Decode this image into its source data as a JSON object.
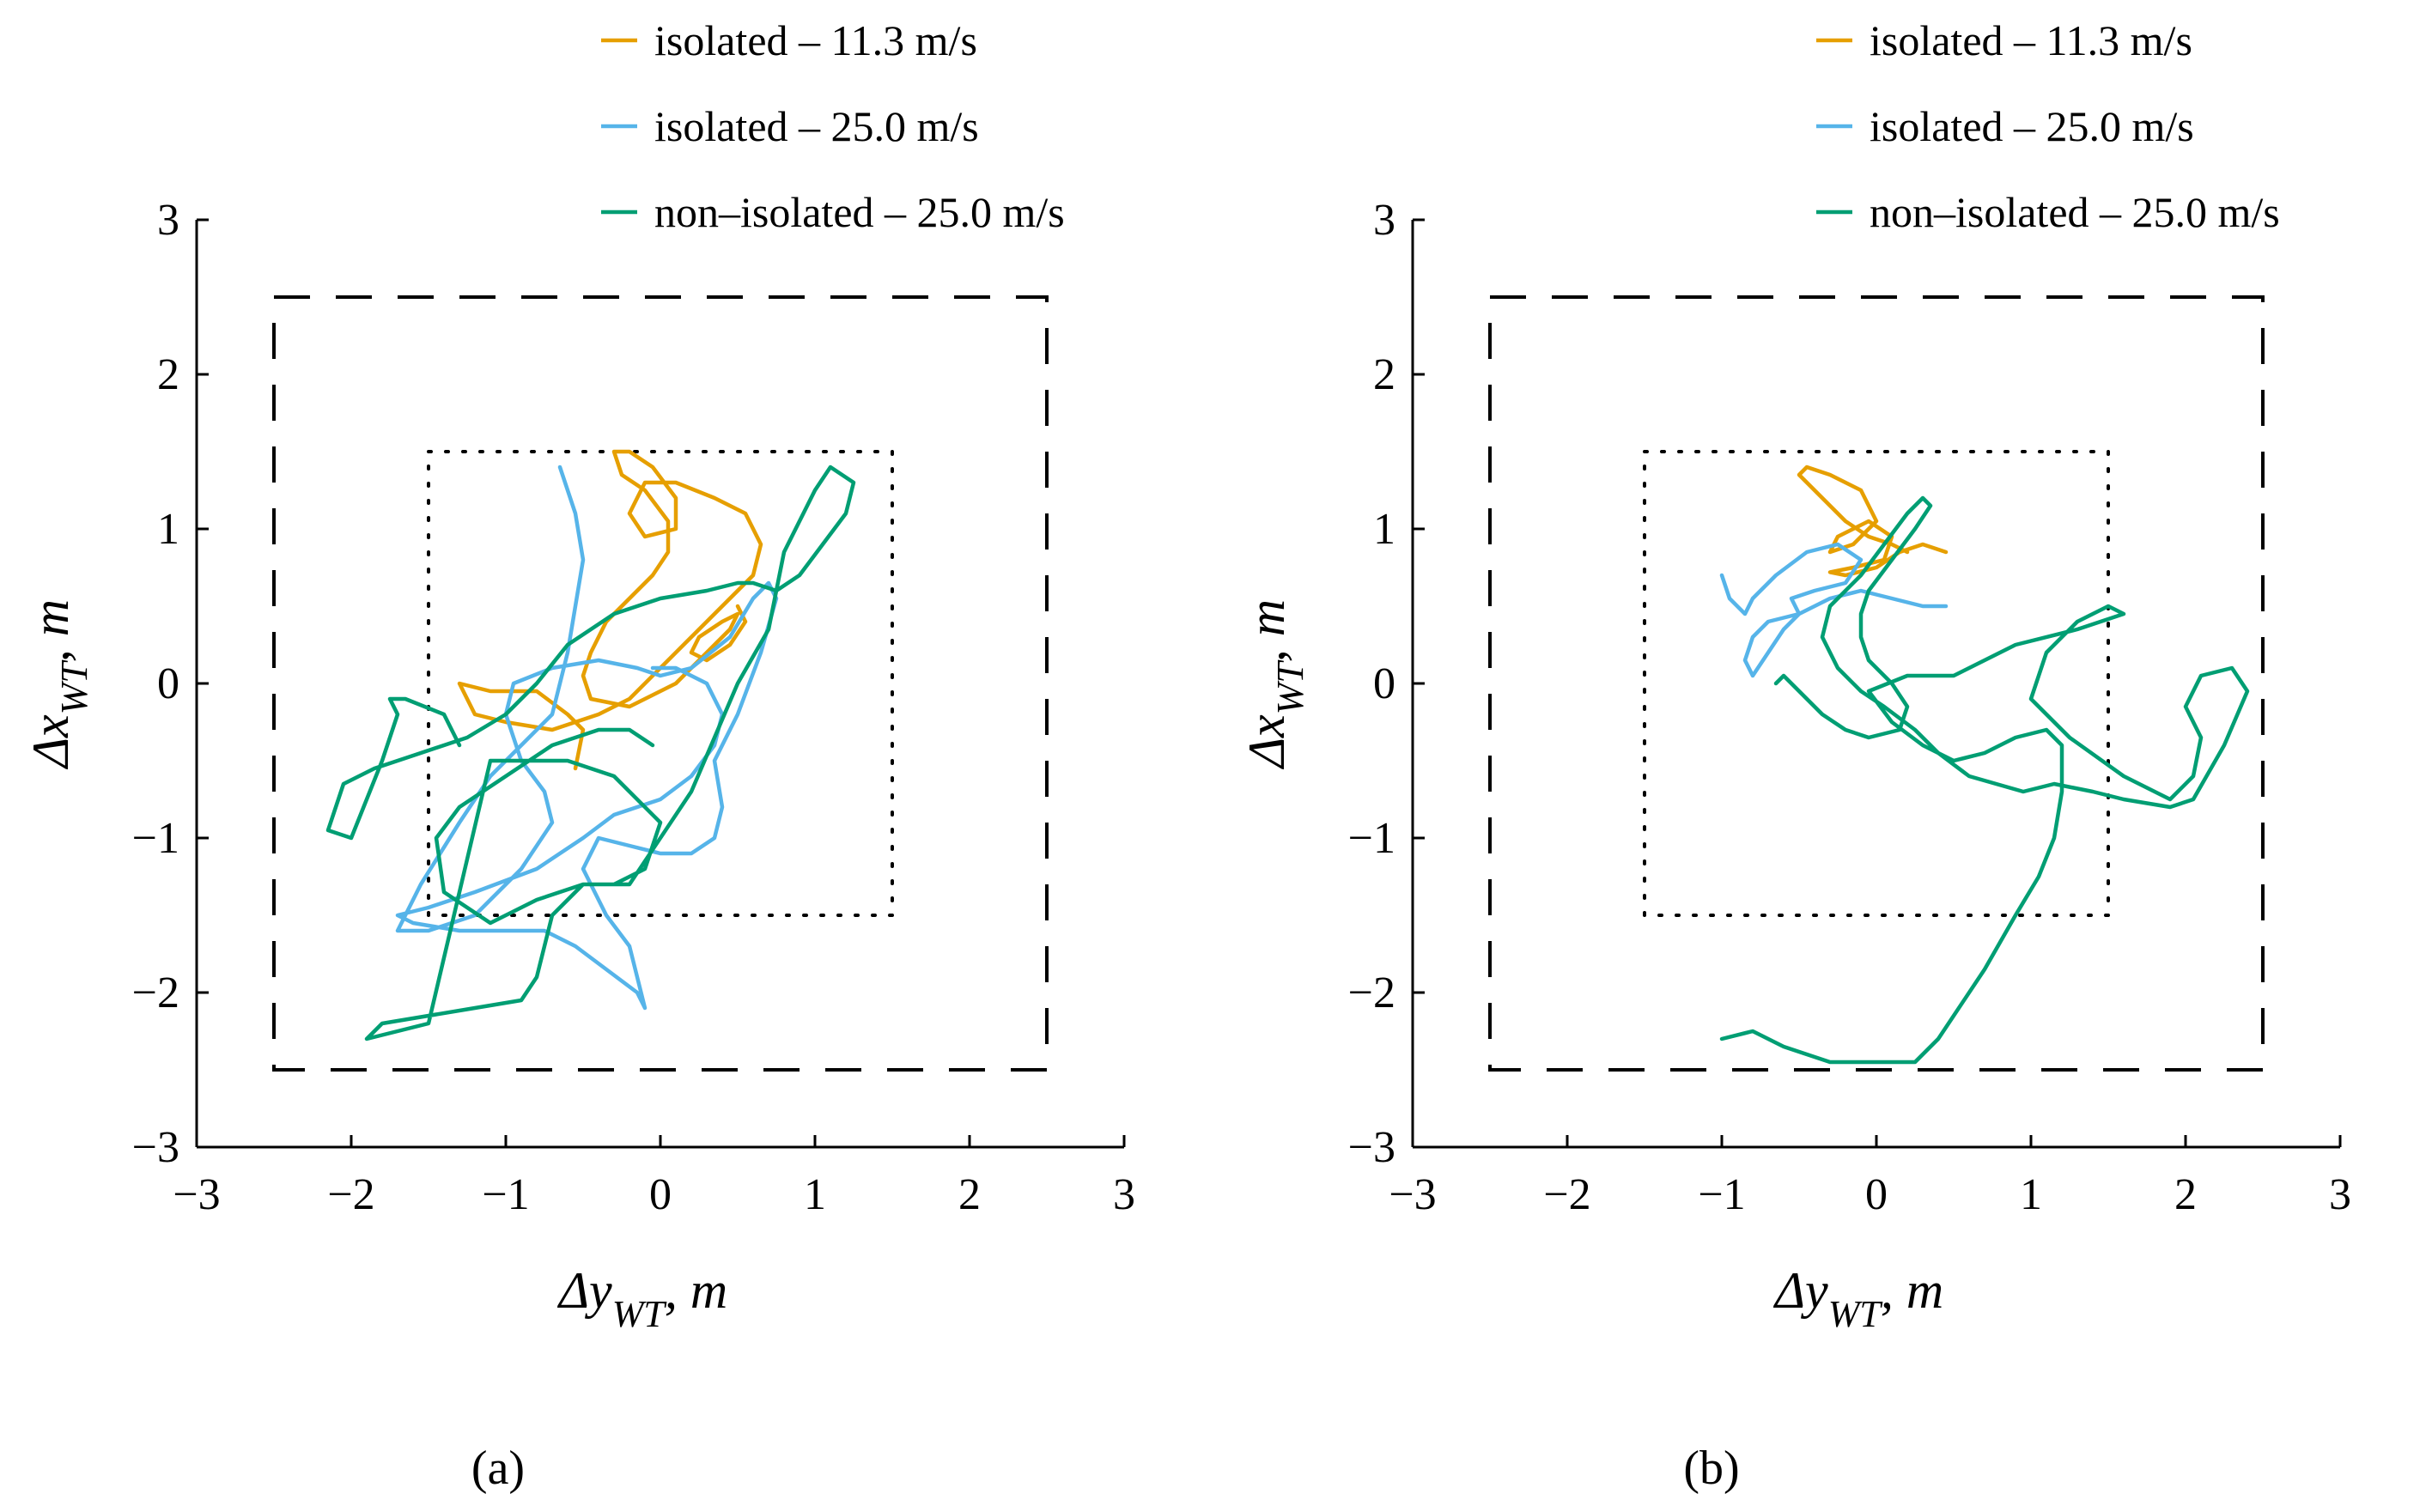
{
  "figure": {
    "panel_labels": [
      "(a)",
      "(b)"
    ]
  },
  "colors": {
    "isolated_11_3": "#E69F00",
    "isolated_25_0": "#56B4E9",
    "non_isolated_25_0": "#009E73",
    "axis": "#000000"
  },
  "chart_data": [
    {
      "type": "line",
      "panel": "(a)",
      "xlabel": "Δy",
      "xlabel_sub": "WT",
      "xlabel_unit": ", m",
      "ylabel": "Δx",
      "ylabel_sub": "WT",
      "ylabel_unit": ", m",
      "xlim": [
        -3,
        3
      ],
      "ylim": [
        -3,
        3
      ],
      "xticks": [
        -3,
        -2,
        -1,
        0,
        1,
        2,
        3
      ],
      "yticks": [
        -3,
        -2,
        -1,
        0,
        1,
        2,
        3
      ],
      "xtick_labels": [
        "−3",
        "−2",
        "−1",
        "0",
        "1",
        "2",
        "3"
      ],
      "ytick_labels": [
        "−3",
        "−2",
        "−1",
        "0",
        "1",
        "2",
        "3"
      ],
      "grid": false,
      "legend_position": "top-right",
      "boundaries": [
        {
          "name": "outer-limit",
          "style": "dashed",
          "half_width": 2.5
        },
        {
          "name": "inner-limit",
          "style": "dotted",
          "half_width": 1.5
        }
      ],
      "series": [
        {
          "name": "isolated – 11.3 m/s",
          "color_key": "isolated_11_3",
          "x": [
            -0.55,
            -0.5,
            -0.6,
            -0.8,
            -1.1,
            -1.3,
            -1.2,
            -1.0,
            -0.7,
            -0.4,
            -0.2,
            0.0,
            0.2,
            0.4,
            0.6,
            0.65,
            0.55,
            0.35,
            0.1,
            -0.1,
            -0.2,
            -0.1,
            0.1,
            0.1,
            -0.05,
            -0.2,
            -0.3,
            -0.25,
            -0.1,
            0.05,
            0.05,
            -0.05,
            -0.2,
            -0.35,
            -0.45,
            -0.5,
            -0.45,
            -0.2,
            0.1,
            0.3,
            0.45,
            0.5,
            0.4,
            0.25,
            0.2,
            0.3,
            0.45,
            0.55,
            0.5
          ],
          "y": [
            -0.55,
            -0.3,
            -0.2,
            -0.05,
            -0.05,
            0.0,
            -0.2,
            -0.25,
            -0.3,
            -0.2,
            -0.1,
            0.1,
            0.3,
            0.5,
            0.7,
            0.9,
            1.1,
            1.2,
            1.3,
            1.3,
            1.1,
            0.95,
            1.0,
            1.2,
            1.4,
            1.5,
            1.5,
            1.35,
            1.25,
            1.05,
            0.85,
            0.7,
            0.55,
            0.4,
            0.2,
            0.05,
            -0.1,
            -0.15,
            0.0,
            0.2,
            0.35,
            0.45,
            0.4,
            0.3,
            0.2,
            0.15,
            0.25,
            0.4,
            0.5
          ]
        },
        {
          "name": "isolated – 25.0 m/s",
          "color_key": "isolated_25_0",
          "x": [
            -0.65,
            -0.55,
            -0.5,
            -0.55,
            -0.6,
            -0.7,
            -0.9,
            -1.1,
            -1.3,
            -1.55,
            -1.7,
            -1.5,
            -1.2,
            -0.9,
            -0.7,
            -0.75,
            -0.9,
            -1.0,
            -0.95,
            -0.7,
            -0.4,
            -0.15,
            0.0,
            0.2,
            0.45,
            0.6,
            0.7,
            0.75,
            0.65,
            0.5,
            0.35,
            0.4,
            0.35,
            0.2,
            0.0,
            -0.2,
            -0.4,
            -0.5,
            -0.35,
            -0.2,
            -0.15,
            -0.1,
            -0.15,
            -0.35,
            -0.55,
            -0.75,
            -0.95,
            -1.3,
            -1.6,
            -1.7,
            -1.5,
            -1.2,
            -0.8,
            -0.5,
            -0.3,
            0.0,
            0.2,
            0.35,
            0.4,
            0.3,
            0.1,
            -0.05
          ],
          "y": [
            1.4,
            1.1,
            0.8,
            0.5,
            0.2,
            -0.2,
            -0.4,
            -0.6,
            -0.9,
            -1.3,
            -1.6,
            -1.6,
            -1.5,
            -1.2,
            -0.9,
            -0.7,
            -0.5,
            -0.2,
            0.0,
            0.1,
            0.15,
            0.1,
            0.05,
            0.1,
            0.3,
            0.55,
            0.65,
            0.55,
            0.2,
            -0.2,
            -0.5,
            -0.8,
            -1.0,
            -1.1,
            -1.1,
            -1.05,
            -1.0,
            -1.2,
            -1.5,
            -1.7,
            -1.9,
            -2.1,
            -2.0,
            -1.85,
            -1.7,
            -1.6,
            -1.6,
            -1.6,
            -1.55,
            -1.5,
            -1.45,
            -1.35,
            -1.2,
            -1.0,
            -0.85,
            -0.75,
            -0.6,
            -0.4,
            -0.2,
            0.0,
            0.1,
            0.1
          ]
        },
        {
          "name": "non–isolated – 25.0 m/s",
          "color_key": "non_isolated_25_0",
          "x": [
            -0.05,
            -0.2,
            -0.4,
            -0.7,
            -1.0,
            -1.3,
            -1.45,
            -1.4,
            -1.1,
            -0.8,
            -0.5,
            -0.3,
            -0.1,
            0.0,
            -0.3,
            -0.6,
            -0.9,
            -1.1,
            -1.5,
            -1.9,
            -1.8,
            -1.5,
            -1.2,
            -0.9,
            -0.8,
            -0.7,
            -0.5,
            -0.2,
            0.2,
            0.5,
            0.7,
            0.75,
            0.8,
            0.9,
            1.0,
            1.1,
            1.25,
            1.2,
            1.05,
            0.9,
            0.75,
            0.6,
            0.5,
            0.3,
            0.0,
            -0.3,
            -0.6,
            -0.8,
            -1.0,
            -1.25,
            -1.55,
            -1.85,
            -2.05,
            -2.15,
            -2.0,
            -1.8,
            -1.7,
            -1.75,
            -1.65,
            -1.4,
            -1.3
          ],
          "y": [
            -0.4,
            -0.3,
            -0.3,
            -0.4,
            -0.6,
            -0.8,
            -1.0,
            -1.35,
            -1.55,
            -1.4,
            -1.3,
            -1.3,
            -1.2,
            -0.9,
            -0.6,
            -0.5,
            -0.5,
            -0.5,
            -2.2,
            -2.3,
            -2.2,
            -2.15,
            -2.1,
            -2.05,
            -1.9,
            -1.5,
            -1.3,
            -1.3,
            -0.7,
            0.0,
            0.35,
            0.6,
            0.85,
            1.05,
            1.25,
            1.4,
            1.3,
            1.1,
            0.9,
            0.7,
            0.6,
            0.65,
            0.65,
            0.6,
            0.55,
            0.45,
            0.25,
            0.0,
            -0.2,
            -0.35,
            -0.45,
            -0.55,
            -0.65,
            -0.95,
            -1.0,
            -0.5,
            -0.2,
            -0.1,
            -0.1,
            -0.2,
            -0.4
          ]
        }
      ]
    },
    {
      "type": "line",
      "panel": "(b)",
      "xlabel": "Δy",
      "xlabel_sub": "WT",
      "xlabel_unit": ", m",
      "ylabel": "Δx",
      "ylabel_sub": "WT",
      "ylabel_unit": ", m",
      "xlim": [
        -3,
        3
      ],
      "ylim": [
        -3,
        3
      ],
      "xticks": [
        -3,
        -2,
        -1,
        0,
        1,
        2,
        3
      ],
      "yticks": [
        -3,
        -2,
        -1,
        0,
        1,
        2,
        3
      ],
      "xtick_labels": [
        "−3",
        "−2",
        "−1",
        "0",
        "1",
        "2",
        "3"
      ],
      "ytick_labels": [
        "−3",
        "−2",
        "−1",
        "0",
        "1",
        "2",
        "3"
      ],
      "grid": false,
      "legend_position": "top-right",
      "boundaries": [
        {
          "name": "outer-limit",
          "style": "dashed",
          "half_width": 2.5
        },
        {
          "name": "inner-limit",
          "style": "dotted",
          "half_width": 1.5
        }
      ],
      "series": [
        {
          "name": "isolated – 11.3 m/s",
          "color_key": "isolated_11_3",
          "x": [
            0.2,
            0.1,
            -0.05,
            -0.2,
            -0.35,
            -0.5,
            -0.45,
            -0.3,
            -0.1,
            0.0,
            -0.15,
            -0.3,
            -0.25,
            -0.05,
            0.1,
            0.05,
            -0.15,
            -0.3,
            -0.2,
            0.0,
            0.15,
            0.3,
            0.45
          ],
          "y": [
            0.85,
            0.9,
            0.95,
            1.05,
            1.2,
            1.35,
            1.4,
            1.35,
            1.25,
            1.05,
            0.9,
            0.85,
            0.95,
            1.05,
            0.95,
            0.8,
            0.75,
            0.72,
            0.7,
            0.75,
            0.85,
            0.9,
            0.85
          ]
        },
        {
          "name": "isolated – 25.0 m/s",
          "color_key": "isolated_25_0",
          "x": [
            0.45,
            0.3,
            0.1,
            -0.1,
            -0.3,
            -0.5,
            -0.7,
            -0.8,
            -0.85,
            -0.8,
            -0.7,
            -0.6,
            -0.5,
            -0.55,
            -0.4,
            -0.2,
            -0.1,
            -0.25,
            -0.45,
            -0.65,
            -0.8,
            -0.85,
            -0.95,
            -1.0
          ],
          "y": [
            0.5,
            0.5,
            0.55,
            0.6,
            0.55,
            0.45,
            0.4,
            0.3,
            0.15,
            0.05,
            0.2,
            0.35,
            0.45,
            0.55,
            0.6,
            0.65,
            0.8,
            0.9,
            0.85,
            0.7,
            0.55,
            0.45,
            0.55,
            0.7
          ]
        },
        {
          "name": "non–isolated – 25.0 m/s",
          "color_key": "non_isolated_25_0",
          "x": [
            -1.0,
            -0.8,
            -0.6,
            -0.3,
            0.0,
            0.25,
            0.4,
            0.5,
            0.7,
            0.9,
            1.05,
            1.15,
            1.2,
            1.2,
            1.1,
            0.9,
            0.7,
            0.5,
            0.3,
            0.1,
            -0.05,
            0.2,
            0.5,
            0.9,
            1.3,
            1.6,
            1.5,
            1.3,
            1.1,
            1.0,
            1.25,
            1.6,
            1.9,
            2.05,
            2.1,
            2.0,
            2.1,
            2.3,
            2.4,
            2.25,
            2.05,
            1.9,
            1.6,
            1.4,
            1.15,
            0.95,
            0.6,
            0.4,
            0.25,
            0.05,
            -0.1,
            -0.25,
            -0.35,
            -0.3,
            -0.1,
            0.05,
            0.2,
            0.3,
            0.35,
            0.25,
            0.1,
            -0.05,
            -0.1,
            -0.1,
            -0.05,
            0.1,
            0.2,
            0.15,
            -0.05,
            -0.2,
            -0.35,
            -0.5,
            -0.6,
            -0.65
          ],
          "y": [
            -2.3,
            -2.25,
            -2.35,
            -2.45,
            -2.45,
            -2.45,
            -2.3,
            -2.15,
            -1.85,
            -1.5,
            -1.25,
            -1.0,
            -0.7,
            -0.4,
            -0.3,
            -0.35,
            -0.45,
            -0.5,
            -0.4,
            -0.25,
            -0.05,
            0.05,
            0.05,
            0.25,
            0.35,
            0.45,
            0.5,
            0.4,
            0.2,
            -0.1,
            -0.35,
            -0.6,
            -0.75,
            -0.6,
            -0.35,
            -0.15,
            0.05,
            0.1,
            -0.05,
            -0.4,
            -0.75,
            -0.8,
            -0.75,
            -0.7,
            -0.65,
            -0.7,
            -0.6,
            -0.45,
            -0.3,
            -0.15,
            -0.05,
            0.1,
            0.3,
            0.5,
            0.7,
            0.9,
            1.1,
            1.2,
            1.15,
            1.0,
            0.8,
            0.6,
            0.45,
            0.3,
            0.15,
            0.0,
            -0.15,
            -0.3,
            -0.35,
            -0.3,
            -0.2,
            -0.05,
            0.05,
            0.0
          ]
        }
      ]
    }
  ]
}
